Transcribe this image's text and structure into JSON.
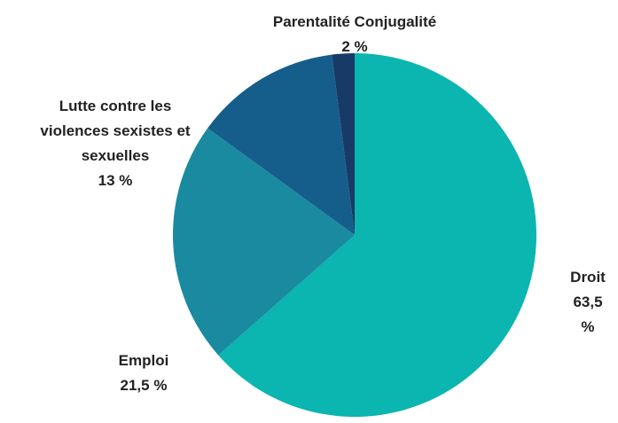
{
  "chart_data": {
    "type": "pie",
    "categories": [
      "Droit",
      "Emploi",
      "Lutte contre les violences sexistes et sexuelles",
      "Parentalité Conjugalité"
    ],
    "values": [
      63.5,
      21.5,
      13,
      2
    ],
    "value_labels": [
      "63,5 %",
      "21,5 %",
      "13 %",
      "2 %"
    ],
    "colors": [
      "#0bb5b0",
      "#1a8aa0",
      "#155e8c",
      "#173a66"
    ]
  }
}
